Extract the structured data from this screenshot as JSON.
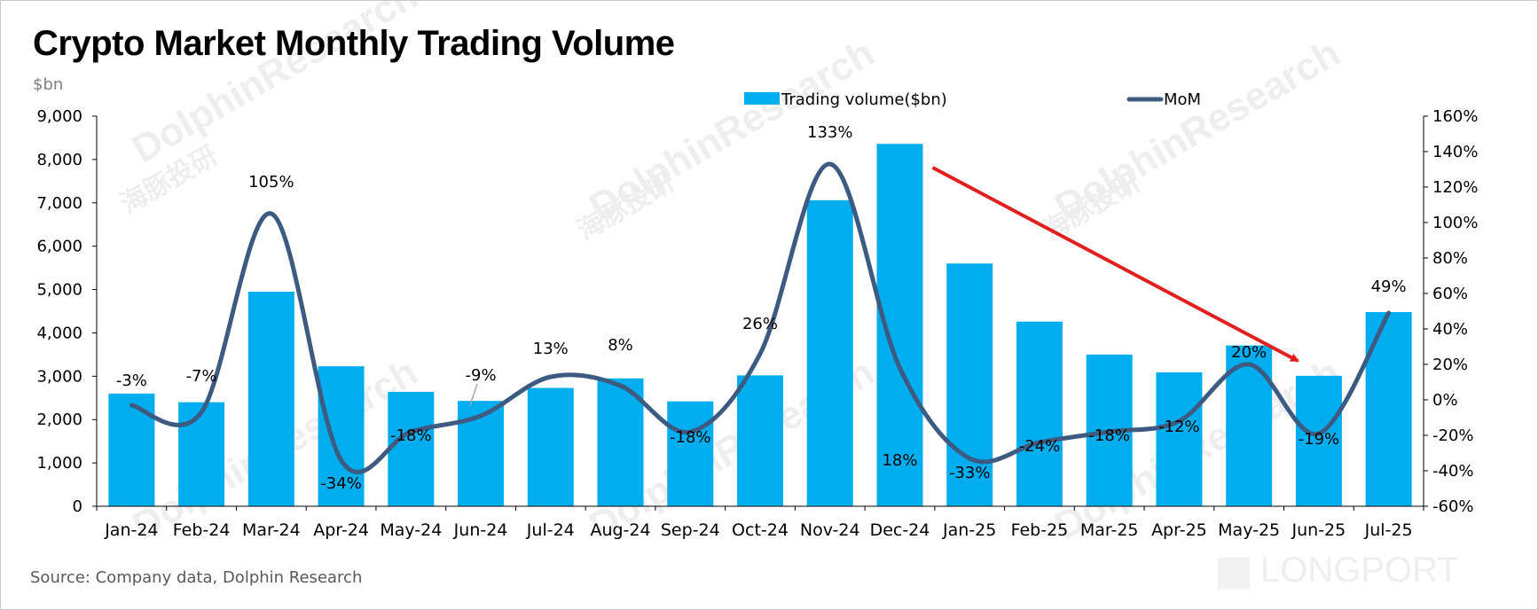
{
  "page": {
    "title": "Crypto Market Monthly Trading Volume",
    "y_unit": "$bn",
    "source": "Source: Company data, Dolphin Research",
    "watermark": "DolphinResearch",
    "watermark_cn": "海豚投研",
    "brand_watermark": "LONGPORT"
  },
  "colors": {
    "bar": "#00ADEF",
    "line": "#3D5A80",
    "arrow": "#E11F1F",
    "axis": "#000000",
    "label": "#000000"
  },
  "chart_data": {
    "type": "bar",
    "title": "Crypto Market Monthly Trading Volume",
    "categories": [
      "Jan-24",
      "Feb-24",
      "Mar-24",
      "Apr-24",
      "May-24",
      "Jun-24",
      "Jul-24",
      "Aug-24",
      "Sep-24",
      "Oct-24",
      "Nov-24",
      "Dec-24",
      "Jan-25",
      "Feb-25",
      "Mar-25",
      "Apr-25",
      "May-25",
      "Jun-25",
      "Jul-25"
    ],
    "series": [
      {
        "name": "Trading volume($bn)",
        "type": "bar",
        "axis": "left",
        "values": [
          2600,
          2400,
          4950,
          3230,
          2640,
          2430,
          2730,
          2950,
          2420,
          3020,
          7060,
          8360,
          5600,
          4260,
          3500,
          3090,
          3710,
          3010,
          4480
        ]
      },
      {
        "name": "MoM",
        "type": "line",
        "axis": "right",
        "values": [
          -3,
          -7,
          105,
          -34,
          -18,
          -9,
          13,
          8,
          -18,
          26,
          133,
          18,
          -33,
          -24,
          -18,
          -12,
          20,
          -19,
          49
        ],
        "labels": [
          "-3%",
          "-7%",
          "105%",
          "-34%",
          "-18%",
          "-9%",
          "13%",
          "8%",
          "-18%",
          "26%",
          "133%",
          "18%",
          "-33%",
          "-24%",
          "-18%",
          "-12%",
          "20%",
          "-19%",
          "49%"
        ]
      }
    ],
    "y_left": {
      "ylim": [
        0,
        9000
      ],
      "ticks": [
        0,
        1000,
        2000,
        3000,
        4000,
        5000,
        6000,
        7000,
        8000,
        9000
      ],
      "tick_labels": [
        "0",
        "1,000",
        "2,000",
        "3,000",
        "4,000",
        "5,000",
        "6,000",
        "7,000",
        "8,000",
        "9,000"
      ]
    },
    "y_right": {
      "ylim": [
        -60,
        160
      ],
      "ticks": [
        -60,
        -40,
        -20,
        0,
        20,
        40,
        60,
        80,
        100,
        120,
        140,
        160
      ],
      "tick_labels": [
        "-60%",
        "-40%",
        "-20%",
        "0%",
        "20%",
        "40%",
        "60%",
        "80%",
        "100%",
        "120%",
        "140%",
        "160%"
      ]
    },
    "grid": false,
    "legend": "top-center",
    "annotation": {
      "type": "arrow",
      "from_category": "Dec-24",
      "to_category": "May-25",
      "meaning": "downtrend"
    }
  }
}
